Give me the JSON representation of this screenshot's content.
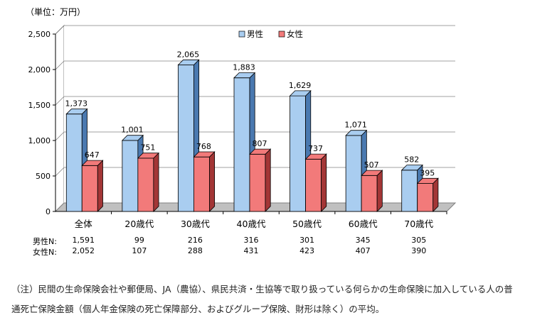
{
  "chart_data": {
    "type": "bar",
    "unit_label": "（単位：万円）",
    "categories": [
      "全体",
      "20歳代",
      "30歳代",
      "40歳代",
      "50歳代",
      "60歳代",
      "70歳代"
    ],
    "series": [
      {
        "name": "男性",
        "values": [
          1373,
          1001,
          2065,
          1883,
          1629,
          1071,
          582
        ],
        "color": "#a9cdf0",
        "side_color": "#4a79b0"
      },
      {
        "name": "女性",
        "values": [
          647,
          751,
          768,
          807,
          737,
          507,
          395
        ],
        "color": "#f27a7a",
        "side_color": "#a33636"
      }
    ],
    "value_labels": {
      "男性": [
        "1,373",
        "1,001",
        "2,065",
        "1,883",
        "1,629",
        "1,071",
        "582"
      ],
      "女性": [
        "647",
        "751",
        "768",
        "807",
        "737",
        "507",
        "395"
      ]
    },
    "ylim": [
      0,
      2500
    ],
    "yticks": [
      0,
      500,
      1000,
      1500,
      2000,
      2500
    ],
    "ytick_labels": [
      "0",
      "500",
      "1,000",
      "1,500",
      "2,000",
      "2,500"
    ],
    "legend_position": "top-center",
    "grid": true
  },
  "n_table": {
    "rows": [
      {
        "label": "男性N:",
        "values": [
          "1,591",
          "99",
          "216",
          "316",
          "301",
          "345",
          "305"
        ]
      },
      {
        "label": "女性N:",
        "values": [
          "2,052",
          "107",
          "288",
          "431",
          "423",
          "407",
          "390"
        ]
      }
    ]
  },
  "note": {
    "line1": "（注）民間の生命保険会社や郵便局、JA（農協）、県民共済・生協等で取り扱っている何らかの生命保険に加入している人の普",
    "line2": "通死亡保険金額（個人年金保険の死亡保障部分、およびグループ保険、財形は除く）の平均。"
  }
}
